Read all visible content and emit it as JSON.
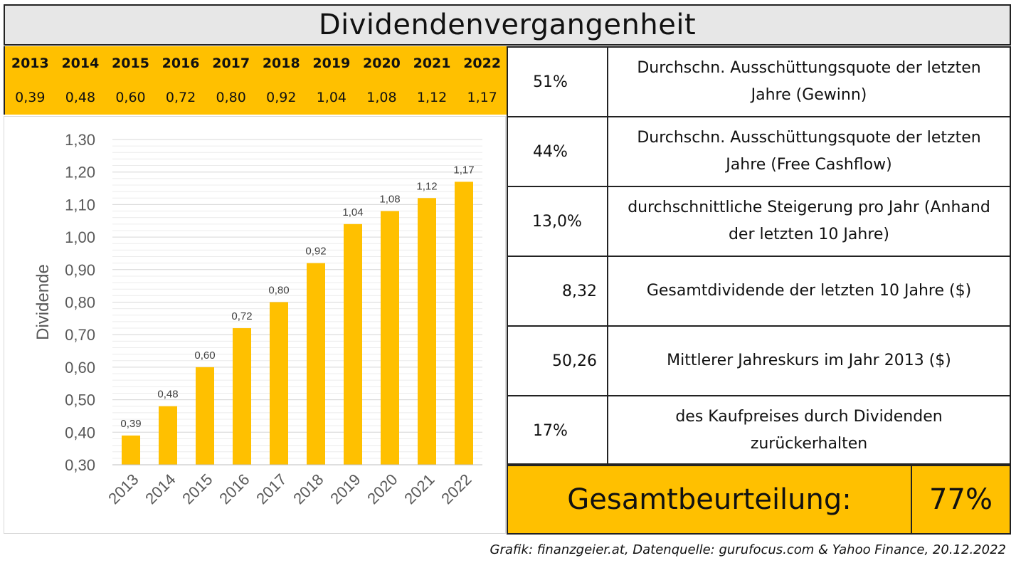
{
  "title": "Dividendenvergangenheit",
  "years": [
    "2013",
    "2014",
    "2015",
    "2016",
    "2017",
    "2018",
    "2019",
    "2020",
    "2021",
    "2022"
  ],
  "dividends": [
    "0,39",
    "0,48",
    "0,60",
    "0,72",
    "0,80",
    "0,92",
    "1,04",
    "1,08",
    "1,12",
    "1,17"
  ],
  "metrics": [
    {
      "value": "51%",
      "label": "Durchschn. Ausschüttungsquote der letzten Jahre (Gewinn)"
    },
    {
      "value": "44%",
      "label": "Durchschn. Ausschüttungsquote der letzten Jahre (Free Cashflow)"
    },
    {
      "value": "13,0%",
      "label": "durchschnittliche Steigerung pro Jahr (Anhand der letzten 10 Jahre)"
    },
    {
      "value": "8,32",
      "label": "Gesamtdividende der letzten 10 Jahre ($)"
    },
    {
      "value": "50,26",
      "label": "Mittlerer Jahreskurs im Jahr 2013 ($)"
    },
    {
      "value": "17%",
      "label": "des Kaufpreises durch Dividenden zurückerhalten"
    }
  ],
  "overall": {
    "label": "Gesamtbeurteilung:",
    "value": "77%"
  },
  "footer": "Grafik: finanzgeier.at, Datenquelle: gurufocus.com & Yahoo Finance, 20.12.2022",
  "colors": {
    "accent": "#ffc000",
    "title_bg": "#e7e7e7",
    "grid": "#d9d9d9"
  },
  "chart_data": {
    "type": "bar",
    "categories": [
      "2013",
      "2014",
      "2015",
      "2016",
      "2017",
      "2018",
      "2019",
      "2020",
      "2021",
      "2022"
    ],
    "values": [
      0.39,
      0.48,
      0.6,
      0.72,
      0.8,
      0.92,
      1.04,
      1.08,
      1.12,
      1.17
    ],
    "value_labels": [
      "0,39",
      "0,48",
      "0,60",
      "0,72",
      "0,80",
      "0,92",
      "1,04",
      "1,08",
      "1,12",
      "1,17"
    ],
    "title": "",
    "xlabel": "",
    "ylabel": "Dividende",
    "ylim": [
      0.3,
      1.3
    ],
    "yticks": [
      0.3,
      0.4,
      0.5,
      0.6,
      0.7,
      0.8,
      0.9,
      1.0,
      1.1,
      1.2,
      1.3
    ],
    "ytick_labels": [
      "0,30",
      "0,40",
      "0,50",
      "0,60",
      "0,70",
      "0,80",
      "0,90",
      "1,00",
      "1,10",
      "1,20",
      "1,30"
    ],
    "grid": true,
    "color": "#ffc000"
  }
}
